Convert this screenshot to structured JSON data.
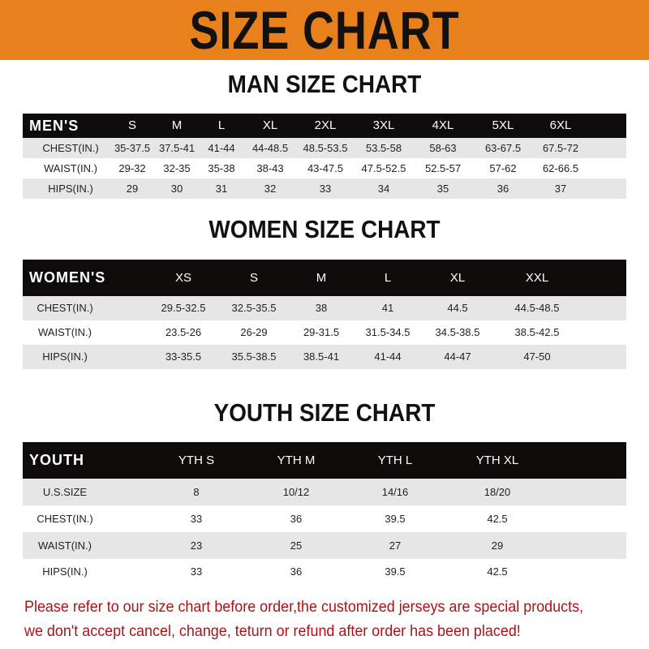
{
  "banner": {
    "title": "SIZE CHART",
    "color": "#e8801c"
  },
  "men": {
    "title": "MAN SIZE CHART",
    "header": [
      "MEN'S",
      "S",
      "M",
      "L",
      "XL",
      "2XL",
      "3XL",
      "4XL",
      "5XL",
      "6XL"
    ],
    "rows": [
      [
        "CHEST(IN.)",
        "35-37.5",
        "37.5-41",
        "41-44",
        "44-48.5",
        "48.5-53.5",
        "53.5-58",
        "58-63",
        "63-67.5",
        "67.5-72"
      ],
      [
        "WAIST(IN.)",
        "29-32",
        "32-35",
        "35-38",
        "38-43",
        "43-47.5",
        "47.5-52.5",
        "52.5-57",
        "57-62",
        "62-66.5"
      ],
      [
        "HIPS(IN.)",
        "29",
        "30",
        "31",
        "32",
        "33",
        "34",
        "35",
        "36",
        "37"
      ]
    ]
  },
  "women": {
    "title": "WOMEN SIZE CHART",
    "header": [
      "WOMEN'S",
      "XS",
      "S",
      "M",
      "L",
      "XL",
      "XXL"
    ],
    "rows": [
      [
        "CHEST(IN.)",
        "29.5-32.5",
        "32.5-35.5",
        "38",
        "41",
        "44.5",
        "44.5-48.5"
      ],
      [
        "WAIST(IN.)",
        "23.5-26",
        "26-29",
        "29-31.5",
        "31.5-34.5",
        "34.5-38.5",
        "38.5-42.5"
      ],
      [
        "HIPS(IN.)",
        "33-35.5",
        "35.5-38.5",
        "38.5-41",
        "41-44",
        "44-47",
        "47-50"
      ]
    ]
  },
  "youth": {
    "title": "YOUTH SIZE CHART",
    "header": [
      "YOUTH",
      "YTH S",
      "YTH M",
      "YTH L",
      "YTH XL"
    ],
    "rows": [
      [
        "U.S.SIZE",
        "8",
        "10/12",
        "14/16",
        "18/20"
      ],
      [
        "CHEST(IN.)",
        "33",
        "36",
        "39.5",
        "42.5"
      ],
      [
        "WAIST(IN.)",
        "23",
        "25",
        "27",
        "29"
      ],
      [
        "HIPS(IN.)",
        "33",
        "36",
        "39.5",
        "42.5"
      ]
    ]
  },
  "footer": {
    "line1": "Please refer to our size chart before order,the customized jerseys are special products,",
    "line2": "we don't accept cancel, change, teturn or refund after order has been placed!",
    "color": "#a8141a"
  }
}
